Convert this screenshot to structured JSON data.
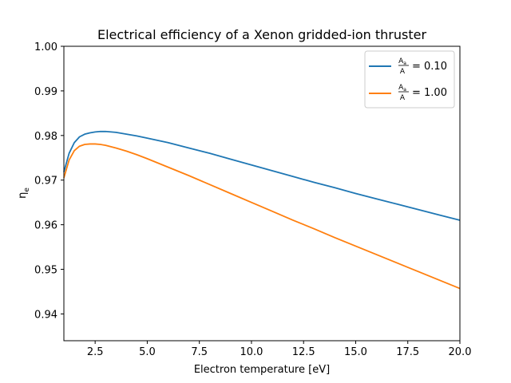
{
  "chart_data": {
    "type": "line",
    "title": "Electrical efficiency of a Xenon gridded-ion thruster",
    "xlabel": "Electron temperature [eV]",
    "ylabel": "η",
    "ylabel_sub": "e",
    "xlim": [
      1.0,
      20.0
    ],
    "ylim": [
      0.934,
      1.0
    ],
    "xticks": [
      2.5,
      5.0,
      7.5,
      10.0,
      12.5,
      15.0,
      17.5,
      20.0
    ],
    "xtick_labels": [
      "2.5",
      "5.0",
      "7.5",
      "10.0",
      "12.5",
      "15.0",
      "17.5",
      "20.0"
    ],
    "yticks": [
      0.94,
      0.95,
      0.96,
      0.97,
      0.98,
      0.99,
      1.0
    ],
    "ytick_labels": [
      "0.94",
      "0.95",
      "0.96",
      "0.97",
      "0.98",
      "0.99",
      "1.00"
    ],
    "grid": false,
    "legend_position": "top-right",
    "x": [
      1.0,
      1.25,
      1.5,
      1.75,
      2.0,
      2.25,
      2.5,
      2.75,
      3.0,
      3.5,
      4.0,
      4.5,
      5.0,
      6.0,
      7.0,
      8.0,
      9.0,
      10.0,
      11.0,
      12.0,
      13.0,
      14.0,
      15.0,
      16.0,
      17.0,
      18.0,
      19.0,
      20.0
    ],
    "series": [
      {
        "legend_num": "A",
        "legend_num_sub": "a",
        "legend_den": "A",
        "legend_value": "= 0.10",
        "color": "#1f77b4",
        "values": [
          0.9718,
          0.976,
          0.9784,
          0.9797,
          0.9803,
          0.9806,
          0.9808,
          0.9809,
          0.9809,
          0.9807,
          0.9803,
          0.9799,
          0.9794,
          0.9784,
          0.9772,
          0.976,
          0.9747,
          0.9734,
          0.9721,
          0.9708,
          0.9695,
          0.9683,
          0.967,
          0.9658,
          0.9646,
          0.9634,
          0.9622,
          0.961
        ]
      },
      {
        "legend_num": "A",
        "legend_num_sub": "a",
        "legend_den": "A",
        "legend_value": "= 1.00",
        "color": "#ff7f0e",
        "values": [
          0.9705,
          0.9745,
          0.9766,
          0.9776,
          0.978,
          0.9781,
          0.9781,
          0.978,
          0.9778,
          0.9772,
          0.9765,
          0.9757,
          0.9748,
          0.9729,
          0.971,
          0.969,
          0.967,
          0.965,
          0.963,
          0.961,
          0.9591,
          0.9571,
          0.9552,
          0.9533,
          0.9514,
          0.9495,
          0.9476,
          0.9457
        ]
      }
    ]
  }
}
